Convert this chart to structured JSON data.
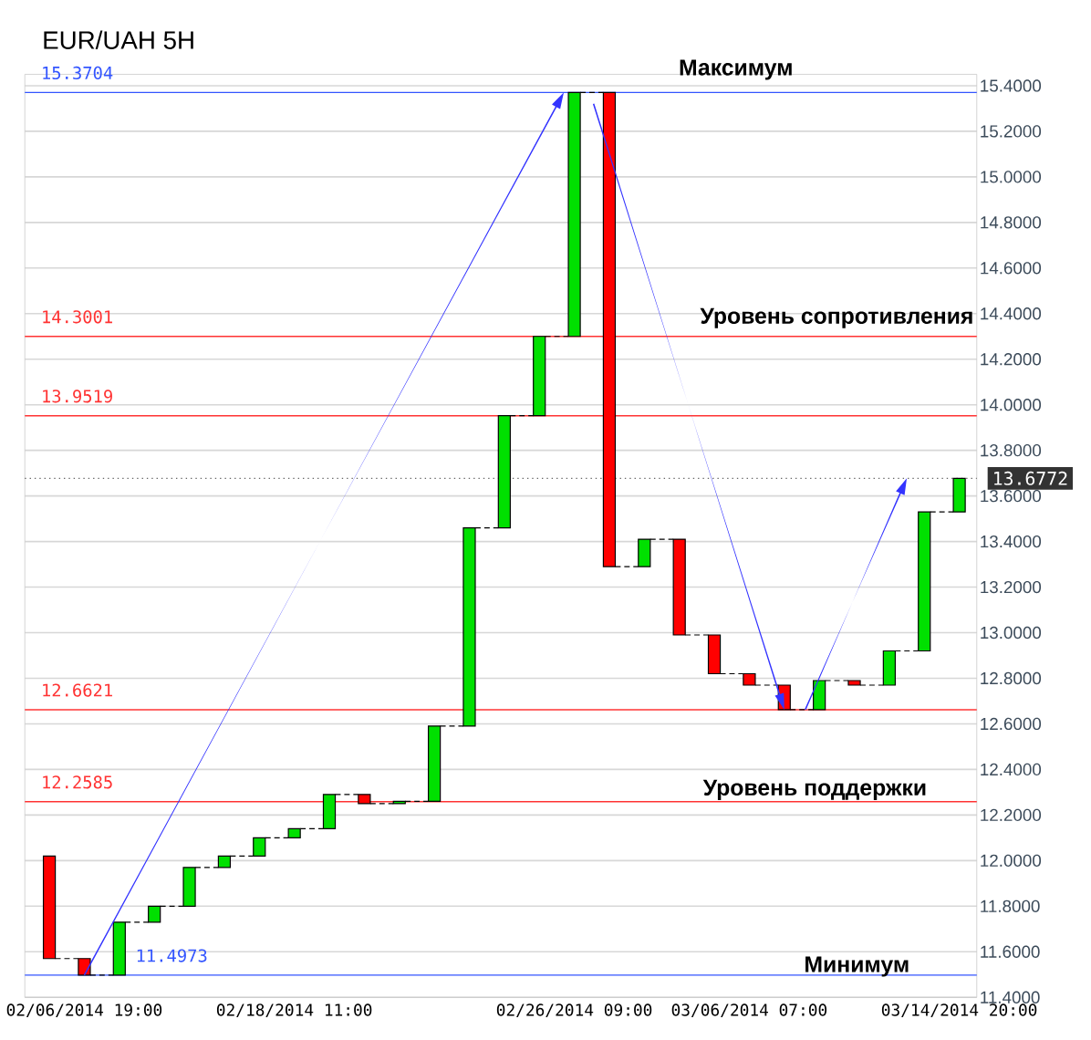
{
  "chart_data": {
    "type": "candlestick",
    "title": "EUR/UAH 5H",
    "categories": [
      null,
      "02/06/2014 19:00",
      null,
      null,
      null,
      null,
      null,
      "02/18/2014 11:00",
      null,
      null,
      null,
      null,
      null,
      null,
      null,
      "02/26/2014 09:00",
      null,
      null,
      null,
      null,
      "03/06/2014 07:00",
      null,
      null,
      null,
      null,
      null,
      "03/14/2014 20:00"
    ],
    "ohlc": [
      [
        12.02,
        12.02,
        11.57,
        11.57
      ],
      [
        11.57,
        11.57,
        11.4973,
        11.4973
      ],
      [
        11.4973,
        11.73,
        11.4973,
        11.73
      ],
      [
        11.73,
        11.8,
        11.73,
        11.8
      ],
      [
        11.8,
        11.97,
        11.8,
        11.97
      ],
      [
        11.97,
        12.02,
        11.97,
        12.02
      ],
      [
        12.02,
        12.1,
        12.02,
        12.1
      ],
      [
        12.1,
        12.14,
        12.1,
        12.14
      ],
      [
        12.14,
        12.29,
        12.14,
        12.29
      ],
      [
        12.29,
        12.29,
        12.25,
        12.25
      ],
      [
        12.25,
        12.26,
        12.25,
        12.26
      ],
      [
        12.26,
        12.59,
        12.26,
        12.59
      ],
      [
        12.59,
        13.46,
        12.59,
        13.46
      ],
      [
        13.46,
        13.9519,
        13.46,
        13.9519
      ],
      [
        13.9519,
        14.3001,
        13.9519,
        14.3001
      ],
      [
        14.3001,
        15.3704,
        14.3001,
        15.3704
      ],
      [
        15.3704,
        15.3704,
        13.29,
        13.29
      ],
      [
        13.29,
        13.41,
        13.29,
        13.41
      ],
      [
        13.41,
        13.41,
        12.99,
        12.99
      ],
      [
        12.99,
        12.99,
        12.82,
        12.82
      ],
      [
        12.82,
        12.82,
        12.77,
        12.77
      ],
      [
        12.77,
        12.77,
        12.6621,
        12.6621
      ],
      [
        12.6621,
        12.79,
        12.6621,
        12.79
      ],
      [
        12.79,
        12.79,
        12.77,
        12.77
      ],
      [
        12.77,
        12.92,
        12.77,
        12.92
      ],
      [
        12.92,
        13.53,
        12.92,
        13.53
      ],
      [
        13.53,
        13.6772,
        13.53,
        13.6772
      ]
    ],
    "colors": [
      "#ff0000",
      "#ff0000",
      "#00e000",
      "#00e000",
      "#00e000",
      "#00e000",
      "#00e000",
      "#00e000",
      "#00e000",
      "#ff0000",
      "#00e000",
      "#00e000",
      "#00e000",
      "#00e000",
      "#00e000",
      "#00e000",
      "#ff0000",
      "#00e000",
      "#ff0000",
      "#ff0000",
      "#ff0000",
      "#ff0000",
      "#00e000",
      "#ff0000",
      "#00e000",
      "#00e000",
      "#00e000"
    ],
    "ylim": [
      11.4,
      15.45
    ],
    "yticks": [
      {
        "value": 11.4,
        "label": "11.4000"
      },
      {
        "value": 11.6,
        "label": "11.6000"
      },
      {
        "value": 11.8,
        "label": "11.8000"
      },
      {
        "value": 12.0,
        "label": "12.0000"
      },
      {
        "value": 12.2,
        "label": "12.2000"
      },
      {
        "value": 12.4,
        "label": "12.4000"
      },
      {
        "value": 12.6,
        "label": "12.6000"
      },
      {
        "value": 12.8,
        "label": "12.8000"
      },
      {
        "value": 13.0,
        "label": "13.0000"
      },
      {
        "value": 13.2,
        "label": "13.2000"
      },
      {
        "value": 13.4,
        "label": "13.4000"
      },
      {
        "value": 13.6,
        "label": "13.6000"
      },
      {
        "value": 13.8,
        "label": "13.8000"
      },
      {
        "value": 14.0,
        "label": "14.0000"
      },
      {
        "value": 14.2,
        "label": "14.2000"
      },
      {
        "value": 14.4,
        "label": "14.4000"
      },
      {
        "value": 14.6,
        "label": "14.6000"
      },
      {
        "value": 14.8,
        "label": "14.8000"
      },
      {
        "value": 15.0,
        "label": "15.0000"
      },
      {
        "value": 15.2,
        "label": "15.2000"
      },
      {
        "value": 15.4,
        "label": "15.4000"
      }
    ],
    "grid": "y",
    "ref_lines": [
      {
        "axis": "y",
        "value": 15.3704,
        "label": "15.3704",
        "color": "#3355ff"
      },
      {
        "axis": "y",
        "value": 14.3001,
        "label": "14.3001",
        "color": "#ff3333"
      },
      {
        "axis": "y",
        "value": 13.9519,
        "label": "13.9519",
        "color": "#ff3333"
      },
      {
        "axis": "y",
        "value": 13.6772,
        "label": "13.6772",
        "color": "#666666",
        "line_style": "dotted"
      },
      {
        "axis": "y",
        "value": 12.6621,
        "label": "12.6621",
        "color": "#ff3333"
      },
      {
        "axis": "y",
        "value": 12.2585,
        "label": "12.2585",
        "color": "#ff3333"
      },
      {
        "axis": "y",
        "value": 11.4973,
        "label": "11.4973",
        "color": "#3355ff"
      }
    ],
    "annotations": [
      "Максимум",
      "Уровень сопротивления",
      "Уровень поддержки",
      "Минимум"
    ]
  }
}
